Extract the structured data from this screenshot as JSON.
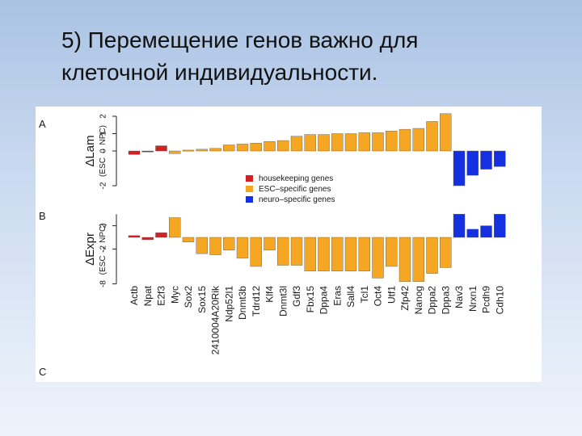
{
  "slide": {
    "title_line1": "5) Перемещение генов важно для",
    "title_line2": "клеточной индивидуальности."
  },
  "figure": {
    "panel_letters": [
      "A",
      "B",
      "C"
    ]
  },
  "chart_data": [
    {
      "type": "bar",
      "panel": "A",
      "ylabel": "ΔLam",
      "ylabel_sub": "(ESC → NPC)",
      "yticks": [
        "-2",
        "0",
        "1",
        "2"
      ],
      "ylim": [
        -2,
        2
      ],
      "categories": [
        "Actb",
        "Npat",
        "E2f3",
        "Myc",
        "Sox2",
        "Sox15",
        "2410004A20Rik",
        "Ndp52l1",
        "Dnmt3b",
        "Tdrd12",
        "Klf4",
        "Dnmt3l",
        "Gdf3",
        "Fbx15",
        "Dppa4",
        "Eras",
        "Sall4",
        "Tcl1",
        "Oct4",
        "Utf1",
        "Zfp42",
        "Nanog",
        "Dppa2",
        "Dppa3",
        "Nav3",
        "Nrxn1",
        "Pcdh9",
        "Cdh10"
      ],
      "groups": [
        "housekeeping",
        "housekeeping",
        "housekeeping",
        "esc",
        "esc",
        "esc",
        "esc",
        "esc",
        "esc",
        "esc",
        "esc",
        "esc",
        "esc",
        "esc",
        "esc",
        "esc",
        "esc",
        "esc",
        "esc",
        "esc",
        "esc",
        "esc",
        "esc",
        "esc",
        "neuro",
        "neuro",
        "neuro",
        "neuro"
      ],
      "values": [
        -0.2,
        -0.05,
        0.3,
        -0.15,
        0.05,
        0.1,
        0.15,
        0.35,
        0.4,
        0.45,
        0.55,
        0.6,
        0.85,
        0.95,
        0.95,
        1.0,
        1.0,
        1.05,
        1.05,
        1.15,
        1.25,
        1.3,
        1.7,
        2.15,
        -2.0,
        -1.4,
        -1.05,
        -0.9
      ]
    },
    {
      "type": "bar",
      "panel": "B",
      "ylabel": "ΔExpr",
      "ylabel_sub": "(ESC → NPC)",
      "yticks": [
        "-8",
        "-2",
        "2"
      ],
      "ylim": [
        -8,
        4
      ],
      "categories": [
        "Actb",
        "Npat",
        "E2f3",
        "Myc",
        "Sox2",
        "Sox15",
        "2410004A20Rik",
        "Ndp52l1",
        "Dnmt3b",
        "Tdrd12",
        "Klf4",
        "Dnmt3l",
        "Gdf3",
        "Fbx15",
        "Dppa4",
        "Eras",
        "Sall4",
        "Tcl1",
        "Oct4",
        "Utf1",
        "Zfp42",
        "Nanog",
        "Dppa2",
        "Dppa3",
        "Nav3",
        "Nrxn1",
        "Pcdh9",
        "Cdh10"
      ],
      "groups": [
        "housekeeping",
        "housekeeping",
        "housekeeping",
        "esc",
        "esc",
        "esc",
        "esc",
        "esc",
        "esc",
        "esc",
        "esc",
        "esc",
        "esc",
        "esc",
        "esc",
        "esc",
        "esc",
        "esc",
        "esc",
        "esc",
        "esc",
        "esc",
        "esc",
        "esc",
        "neuro",
        "neuro",
        "neuro",
        "neuro"
      ],
      "values": [
        0.3,
        -0.4,
        0.8,
        3.4,
        -0.8,
        -2.8,
        -3.0,
        -2.2,
        -3.6,
        -5.0,
        -2.2,
        -4.8,
        -4.8,
        -5.8,
        -5.8,
        -5.8,
        -5.8,
        -5.8,
        -7.0,
        -5.0,
        -7.6,
        -7.6,
        -6.2,
        -5.2,
        4.0,
        1.4,
        2.0,
        4.0
      ]
    }
  ],
  "legend": [
    {
      "key": "housekeeping",
      "label": "housekeeping genes",
      "color": "#d42020"
    },
    {
      "key": "esc",
      "label": "ESC–specific genes",
      "color": "#f5a623"
    },
    {
      "key": "neuro",
      "label": "neuro–specific genes",
      "color": "#1430e0"
    }
  ]
}
